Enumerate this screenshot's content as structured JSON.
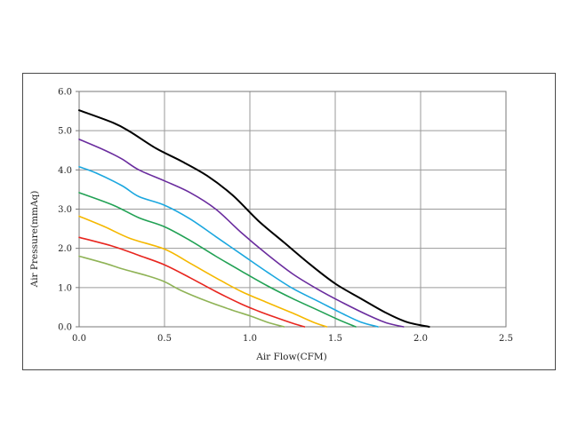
{
  "chart_data": {
    "type": "line",
    "title": "",
    "xlabel": "Air Flow(CFM)",
    "ylabel": "Air Pressure(mmAq)",
    "xlim": [
      0,
      2.5
    ],
    "ylim": [
      0,
      6
    ],
    "x_ticks": [
      "0.0",
      "0.5",
      "1.0",
      "1.5",
      "2.0",
      "2.5"
    ],
    "y_ticks": [
      "0.0",
      "1.0",
      "2.0",
      "3.0",
      "4.0",
      "5.0",
      "6.0"
    ],
    "grid": true,
    "legend": "none",
    "series": [
      {
        "color": "#000000",
        "points": [
          [
            0,
            5.52
          ],
          [
            0.2,
            5.2
          ],
          [
            0.3,
            4.97
          ],
          [
            0.45,
            4.55
          ],
          [
            0.6,
            4.22
          ],
          [
            0.75,
            3.85
          ],
          [
            0.9,
            3.35
          ],
          [
            1.05,
            2.7
          ],
          [
            1.2,
            2.15
          ],
          [
            1.35,
            1.6
          ],
          [
            1.5,
            1.1
          ],
          [
            1.65,
            0.72
          ],
          [
            1.8,
            0.35
          ],
          [
            1.92,
            0.12
          ],
          [
            2.05,
            0.0
          ]
        ]
      },
      {
        "color": "#6a2c9e",
        "points": [
          [
            0,
            4.78
          ],
          [
            0.15,
            4.5
          ],
          [
            0.25,
            4.28
          ],
          [
            0.35,
            4.0
          ],
          [
            0.5,
            3.72
          ],
          [
            0.65,
            3.42
          ],
          [
            0.8,
            3.0
          ],
          [
            0.95,
            2.4
          ],
          [
            1.1,
            1.85
          ],
          [
            1.25,
            1.35
          ],
          [
            1.4,
            0.95
          ],
          [
            1.55,
            0.6
          ],
          [
            1.7,
            0.28
          ],
          [
            1.8,
            0.1
          ],
          [
            1.9,
            0.0
          ]
        ]
      },
      {
        "color": "#1ba7df",
        "points": [
          [
            0,
            4.08
          ],
          [
            0.1,
            3.92
          ],
          [
            0.25,
            3.6
          ],
          [
            0.35,
            3.32
          ],
          [
            0.5,
            3.1
          ],
          [
            0.65,
            2.75
          ],
          [
            0.8,
            2.3
          ],
          [
            0.95,
            1.85
          ],
          [
            1.1,
            1.4
          ],
          [
            1.25,
            0.98
          ],
          [
            1.4,
            0.65
          ],
          [
            1.55,
            0.32
          ],
          [
            1.65,
            0.12
          ],
          [
            1.75,
            0.0
          ]
        ]
      },
      {
        "color": "#21a154",
        "points": [
          [
            0,
            3.42
          ],
          [
            0.2,
            3.1
          ],
          [
            0.35,
            2.78
          ],
          [
            0.5,
            2.55
          ],
          [
            0.65,
            2.2
          ],
          [
            0.8,
            1.8
          ],
          [
            0.95,
            1.42
          ],
          [
            1.1,
            1.05
          ],
          [
            1.25,
            0.72
          ],
          [
            1.4,
            0.42
          ],
          [
            1.52,
            0.18
          ],
          [
            1.62,
            0.0
          ]
        ]
      },
      {
        "color": "#f5b800",
        "points": [
          [
            0,
            2.82
          ],
          [
            0.15,
            2.55
          ],
          [
            0.3,
            2.25
          ],
          [
            0.5,
            1.98
          ],
          [
            0.65,
            1.62
          ],
          [
            0.8,
            1.25
          ],
          [
            0.95,
            0.9
          ],
          [
            1.1,
            0.62
          ],
          [
            1.25,
            0.35
          ],
          [
            1.37,
            0.12
          ],
          [
            1.45,
            0.0
          ]
        ]
      },
      {
        "color": "#e8261f",
        "points": [
          [
            0,
            2.28
          ],
          [
            0.2,
            2.05
          ],
          [
            0.35,
            1.82
          ],
          [
            0.5,
            1.58
          ],
          [
            0.65,
            1.25
          ],
          [
            0.8,
            0.9
          ],
          [
            0.95,
            0.58
          ],
          [
            1.05,
            0.4
          ],
          [
            1.15,
            0.24
          ],
          [
            1.25,
            0.09
          ],
          [
            1.32,
            0.0
          ]
        ]
      },
      {
        "color": "#8fb356",
        "points": [
          [
            0,
            1.8
          ],
          [
            0.15,
            1.62
          ],
          [
            0.25,
            1.48
          ],
          [
            0.4,
            1.3
          ],
          [
            0.5,
            1.15
          ],
          [
            0.6,
            0.92
          ],
          [
            0.75,
            0.65
          ],
          [
            0.9,
            0.42
          ],
          [
            1.0,
            0.28
          ],
          [
            1.1,
            0.12
          ],
          [
            1.2,
            0.0
          ]
        ]
      }
    ]
  }
}
